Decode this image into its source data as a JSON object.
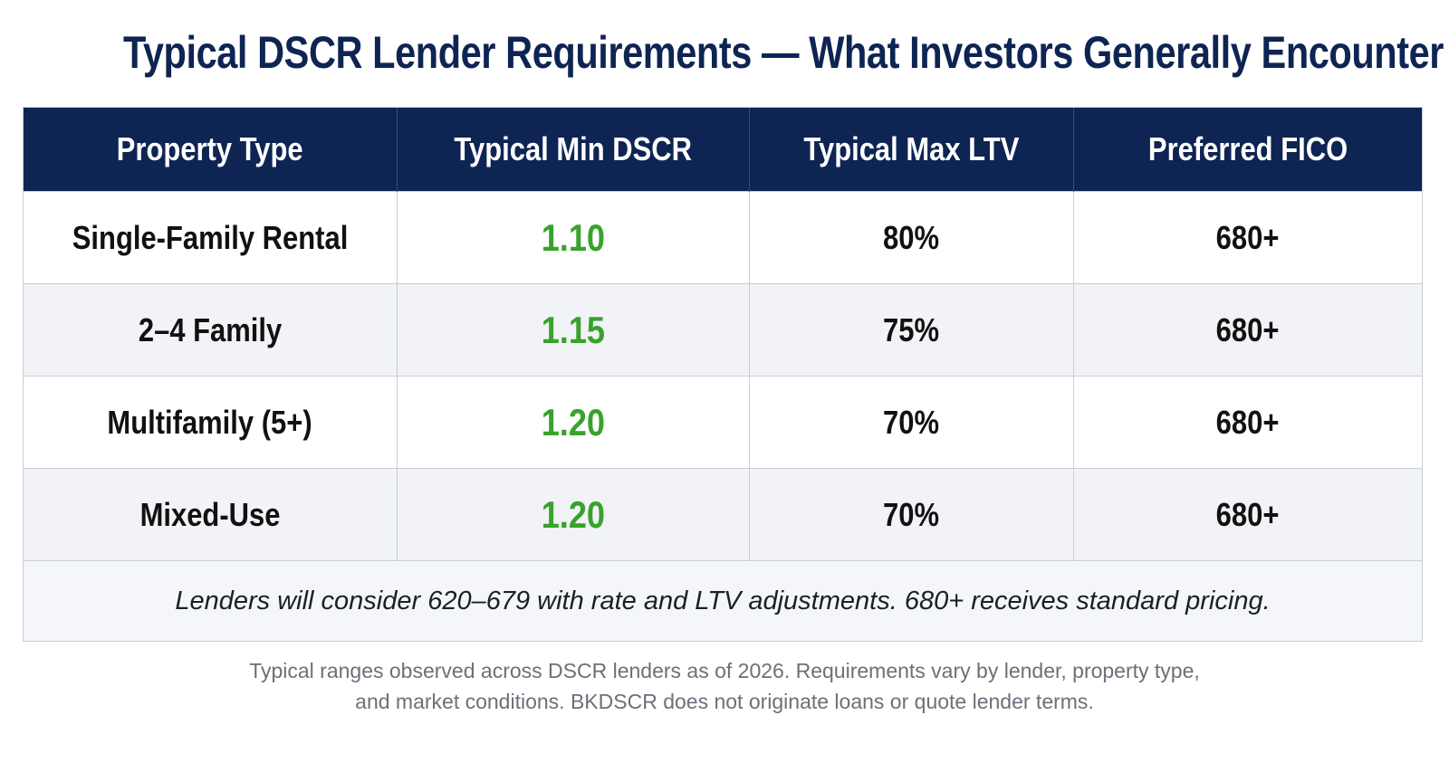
{
  "title": "Typical DSCR Lender Requirements — What Investors Generally Encounter",
  "table": {
    "headers": [
      "Property Type",
      "Typical Min DSCR",
      "Typical Max LTV",
      "Preferred FICO"
    ],
    "rows": [
      {
        "property_type": "Single-Family Rental",
        "min_dscr": "1.10",
        "max_ltv": "80%",
        "fico": "680+"
      },
      {
        "property_type": "2–4 Family",
        "min_dscr": "1.15",
        "max_ltv": "75%",
        "fico": "680+"
      },
      {
        "property_type": "Multifamily (5+)",
        "min_dscr": "1.20",
        "max_ltv": "70%",
        "fico": "680+"
      },
      {
        "property_type": "Mixed-Use",
        "min_dscr": "1.20",
        "max_ltv": "70%",
        "fico": "680+"
      }
    ],
    "footnote": "Lenders will consider 620–679 with rate and LTV adjustments. 680+ receives standard pricing."
  },
  "disclaimer": {
    "line1": "Typical ranges observed across DSCR lenders as of 2026. Requirements vary by lender, property type,",
    "line2": "and market conditions. BKDSCR does not originate loans or quote lender terms."
  },
  "colors": {
    "header_navy": "#0e2453",
    "dscr_green": "#38a22c",
    "alt_row": "#f1f3f6"
  }
}
